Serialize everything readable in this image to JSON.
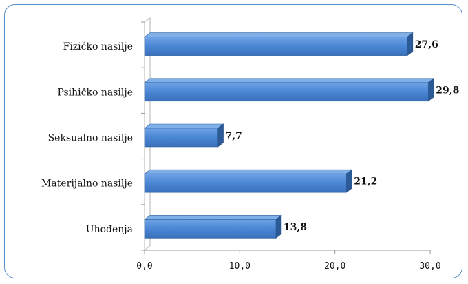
{
  "chart_data": {
    "type": "bar",
    "orientation": "horizontal",
    "categories": [
      "Fizičko nasilje",
      "Psihičko nasilje",
      "Seksualno nasilje",
      "Materijalno nasilje",
      "Uhođenja"
    ],
    "values": [
      27.6,
      29.8,
      7.7,
      21.2,
      13.8
    ],
    "value_labels": [
      "27,6",
      "29,8",
      "7,7",
      "21,2",
      "13,8"
    ],
    "xlim": [
      0,
      30
    ],
    "xticks": [
      0,
      10,
      20,
      30
    ],
    "xtick_labels": [
      "0,0",
      "10,0",
      "20,0",
      "30,0"
    ],
    "grid": false,
    "style": "3d",
    "bar_color": "#4a86d4"
  }
}
